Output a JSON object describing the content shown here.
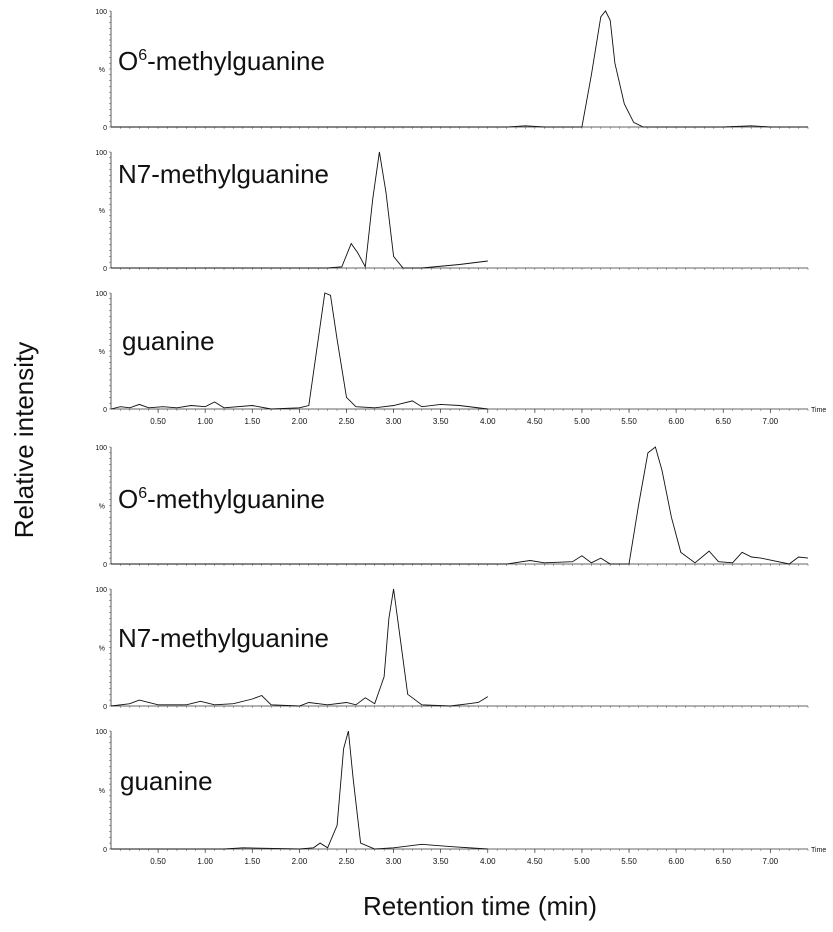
{
  "figure": {
    "ylabel": "Relative intensity",
    "xlabel": "Retention time (min)"
  },
  "chart_data": [
    {
      "type": "line",
      "group": "top",
      "label_main": "O",
      "label_sup": "6",
      "label_rest": "-methylguanine",
      "left_tag": "%",
      "ylim": [
        0,
        100
      ],
      "xlim": [
        0,
        7.4
      ],
      "y_tick_labels": [
        "100",
        "0"
      ],
      "series": [
        {
          "x": [
            0,
            4.0,
            4.2,
            4.4,
            4.6,
            4.8,
            5.0,
            5.1,
            5.2,
            5.25,
            5.3,
            5.35,
            5.45,
            5.55,
            5.65,
            5.8,
            6.5,
            6.8,
            7.0,
            7.4
          ],
          "y": [
            0,
            0,
            0,
            1,
            0,
            0,
            0,
            45,
            95,
            100,
            92,
            55,
            20,
            4,
            0,
            0,
            0,
            1,
            0,
            0
          ]
        }
      ]
    },
    {
      "type": "line",
      "group": "top",
      "label_main": "N7-methylguanine",
      "label_sup": "",
      "label_rest": "",
      "left_tag": "%",
      "ylim": [
        0,
        100
      ],
      "xlim": [
        0,
        7.4
      ],
      "y_tick_labels": [
        "100",
        "0"
      ],
      "series": [
        {
          "x": [
            0,
            2.3,
            2.45,
            2.55,
            2.62,
            2.7,
            2.78,
            2.85,
            2.92,
            3.0,
            3.1,
            3.3,
            3.7,
            4.0
          ],
          "y": [
            0,
            0,
            1,
            21,
            13,
            1,
            60,
            100,
            65,
            10,
            0,
            0,
            3,
            6
          ]
        }
      ]
    },
    {
      "type": "line",
      "group": "top",
      "label_main": "guanine",
      "label_sup": "",
      "label_rest": "",
      "left_tag": "%",
      "ylim": [
        0,
        100
      ],
      "xlim": [
        0,
        7.4
      ],
      "y_tick_labels": [
        "100",
        "0"
      ],
      "series": [
        {
          "x": [
            0,
            0.1,
            0.2,
            0.3,
            0.4,
            0.55,
            0.7,
            0.85,
            1.0,
            1.1,
            1.2,
            1.5,
            1.7,
            2.0,
            2.1,
            2.2,
            2.27,
            2.33,
            2.4,
            2.5,
            2.6,
            2.8,
            3.0,
            3.2,
            3.3,
            3.5,
            3.7,
            4.0
          ],
          "y": [
            0,
            2,
            1,
            4,
            1,
            2,
            1,
            3,
            2,
            6,
            1,
            3,
            0,
            1,
            3,
            60,
            100,
            98,
            60,
            10,
            2,
            1,
            3,
            7,
            2,
            4,
            3,
            0
          ]
        }
      ]
    },
    {
      "type": "line",
      "group": "bottom",
      "label_main": "O",
      "label_sup": "6",
      "label_rest": "-methylguanine",
      "left_tag": "%",
      "ylim": [
        0,
        100
      ],
      "xlim": [
        0,
        7.4
      ],
      "y_tick_labels": [
        "100",
        "0"
      ],
      "series": [
        {
          "x": [
            0,
            4.2,
            4.45,
            4.6,
            4.9,
            5.0,
            5.1,
            5.2,
            5.3,
            5.5,
            5.6,
            5.7,
            5.78,
            5.85,
            5.95,
            6.05,
            6.2,
            6.35,
            6.45,
            6.6,
            6.7,
            6.8,
            6.9,
            7.2,
            7.3,
            7.4
          ],
          "y": [
            0,
            0,
            3,
            1,
            2,
            7,
            1,
            5,
            0,
            0,
            50,
            95,
            100,
            80,
            40,
            10,
            1,
            11,
            2,
            1,
            10,
            6,
            5,
            0,
            6,
            5
          ]
        }
      ]
    },
    {
      "type": "line",
      "group": "bottom",
      "label_main": "N7-methylguanine",
      "label_sup": "",
      "label_rest": "",
      "left_tag": "%",
      "ylim": [
        0,
        100
      ],
      "xlim": [
        0,
        7.4
      ],
      "y_tick_labels": [
        "100",
        "0"
      ],
      "series": [
        {
          "x": [
            0,
            0.2,
            0.3,
            0.5,
            0.8,
            0.95,
            1.1,
            1.3,
            1.5,
            1.6,
            1.7,
            2.0,
            2.1,
            2.3,
            2.5,
            2.6,
            2.7,
            2.8,
            2.9,
            2.95,
            3.0,
            3.05,
            3.15,
            3.3,
            3.6,
            3.8,
            3.9,
            4.0
          ],
          "y": [
            0,
            2,
            5,
            1,
            1,
            4,
            1,
            2,
            6,
            9,
            1,
            0,
            3,
            1,
            3,
            1,
            7,
            2,
            25,
            75,
            100,
            70,
            10,
            1,
            0,
            2,
            3,
            8
          ]
        }
      ]
    },
    {
      "type": "line",
      "group": "bottom",
      "label_main": "guanine",
      "label_sup": "",
      "label_rest": "",
      "left_tag": "%",
      "ylim": [
        0,
        100
      ],
      "xlim": [
        0,
        7.4
      ],
      "y_tick_labels": [
        "100",
        "0"
      ],
      "series": [
        {
          "x": [
            0,
            1.2,
            1.4,
            2.0,
            2.15,
            2.22,
            2.3,
            2.4,
            2.47,
            2.52,
            2.57,
            2.65,
            2.8,
            3.0,
            3.3,
            3.6,
            4.0
          ],
          "y": [
            0,
            0,
            1,
            0,
            1,
            5,
            1,
            20,
            85,
            100,
            60,
            5,
            0,
            1,
            4,
            2,
            0
          ]
        }
      ]
    }
  ],
  "x_axes": [
    {
      "after_panel": 2,
      "end_label": "Time",
      "tick_labels": [
        "0.50",
        "1.00",
        "1.50",
        "2.00",
        "2.50",
        "3.00",
        "3.50",
        "4.00",
        "4.50",
        "5.00",
        "5.50",
        "6.00",
        "6.50",
        "7.00"
      ],
      "tick_values": [
        0.5,
        1.0,
        1.5,
        2.0,
        2.5,
        3.0,
        3.5,
        4.0,
        4.5,
        5.0,
        5.5,
        6.0,
        6.5,
        7.0
      ]
    },
    {
      "after_panel": 5,
      "end_label": "Time",
      "tick_labels": [
        "0.50",
        "1.00",
        "1.50",
        "2.00",
        "2.50",
        "3.00",
        "3.50",
        "4.00",
        "4.50",
        "5.00",
        "5.50",
        "6.00",
        "6.50",
        "7.00"
      ],
      "tick_values": [
        0.5,
        1.0,
        1.5,
        2.0,
        2.5,
        3.0,
        3.5,
        4.0,
        4.5,
        5.0,
        5.5,
        6.0,
        6.5,
        7.0
      ]
    }
  ]
}
